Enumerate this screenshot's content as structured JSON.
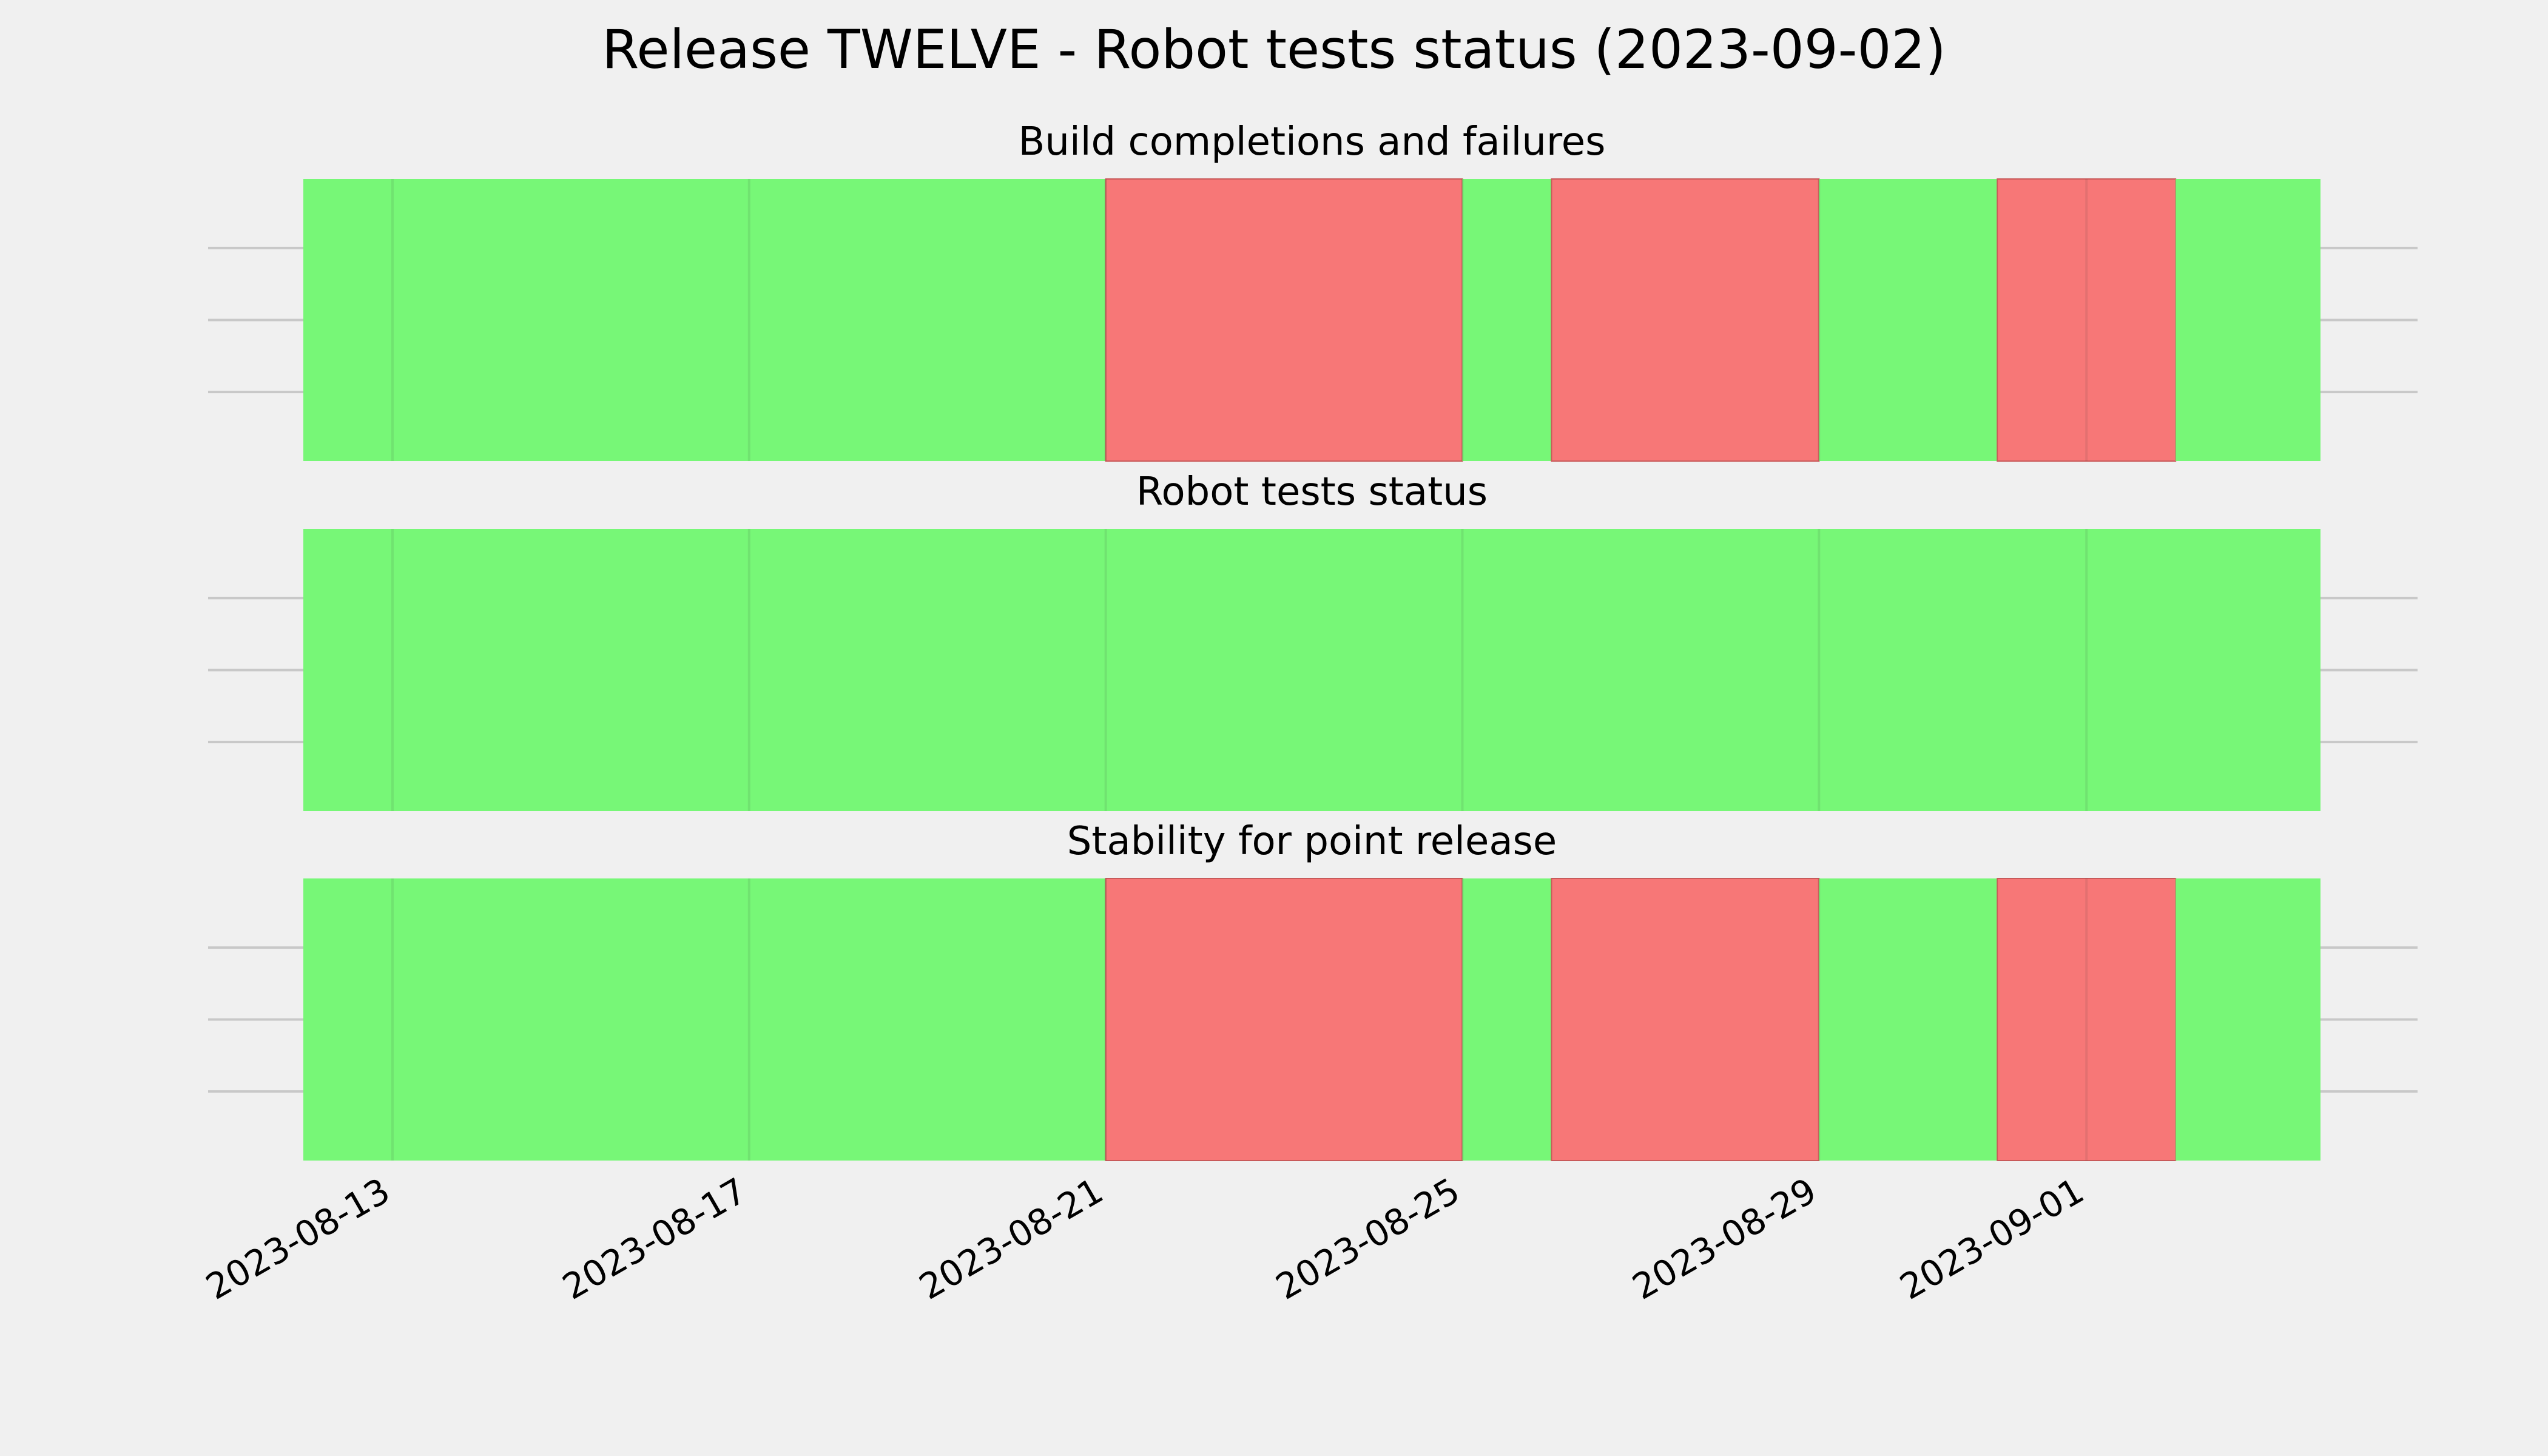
{
  "chart_data": {
    "type": "timeline",
    "title": "Release TWELVE - Robot tests status (2023-09-02)",
    "x_range": [
      "2023-08-12",
      "2023-09-03 15:00"
    ],
    "x_ticks": [
      "2023-08-13",
      "2023-08-17",
      "2023-08-21",
      "2023-08-25",
      "2023-08-29",
      "2023-09-01"
    ],
    "status_colors": {
      "pass": "#77f777",
      "fail": "#f77777"
    },
    "grid": true,
    "panels": [
      {
        "title": "Build completions and failures",
        "segments": [
          {
            "start": "2023-08-12",
            "end": "2023-08-21",
            "status": "pass"
          },
          {
            "start": "2023-08-21",
            "end": "2023-08-25",
            "status": "fail"
          },
          {
            "start": "2023-08-25",
            "end": "2023-08-26",
            "status": "pass"
          },
          {
            "start": "2023-08-26",
            "end": "2023-08-29",
            "status": "fail"
          },
          {
            "start": "2023-08-29",
            "end": "2023-08-31",
            "status": "pass"
          },
          {
            "start": "2023-08-31",
            "end": "2023-09-02",
            "status": "fail"
          },
          {
            "start": "2023-09-02",
            "end": "2023-09-03 15:00",
            "status": "pass"
          }
        ]
      },
      {
        "title": "Robot tests status",
        "segments": [
          {
            "start": "2023-08-12",
            "end": "2023-09-03 15:00",
            "status": "pass"
          }
        ]
      },
      {
        "title": "Stability for point release",
        "segments": [
          {
            "start": "2023-08-12",
            "end": "2023-08-21",
            "status": "pass"
          },
          {
            "start": "2023-08-21",
            "end": "2023-08-25",
            "status": "fail"
          },
          {
            "start": "2023-08-25",
            "end": "2023-08-26",
            "status": "pass"
          },
          {
            "start": "2023-08-26",
            "end": "2023-08-29",
            "status": "fail"
          },
          {
            "start": "2023-08-29",
            "end": "2023-08-31",
            "status": "pass"
          },
          {
            "start": "2023-08-31",
            "end": "2023-09-02",
            "status": "fail"
          },
          {
            "start": "2023-09-02",
            "end": "2023-09-03 15:00",
            "status": "pass"
          }
        ]
      }
    ]
  }
}
